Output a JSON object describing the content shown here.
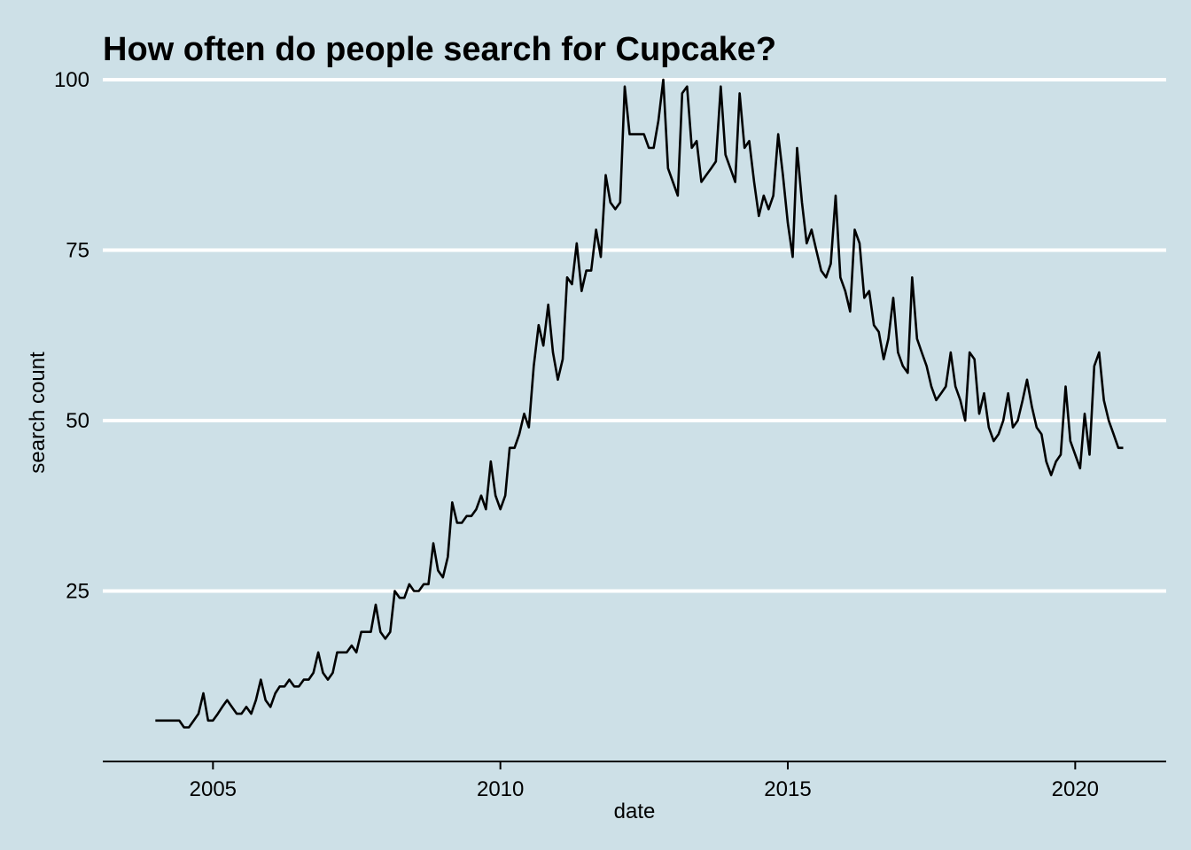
{
  "colors": {
    "background": "#cde0e7",
    "grid": "#ffffff",
    "line": "#000000",
    "axis": "#000000",
    "text": "#000000"
  },
  "chart_data": {
    "type": "line",
    "title": "How often do people search for Cupcake?",
    "xlabel": "date",
    "ylabel": "search count",
    "grid": "horizontal major lines only",
    "xlim": [
      "2003-02-01",
      "2021-08-01"
    ],
    "ylim": [
      0,
      100
    ],
    "x_ticks": [
      "2005-01-01",
      "2010-01-01",
      "2015-01-01",
      "2020-01-01"
    ],
    "x_tick_labels": [
      "2005",
      "2010",
      "2015",
      "2020"
    ],
    "y_ticks": [
      25,
      50,
      75,
      100
    ],
    "y_tick_labels": [
      "25",
      "50",
      "75",
      "100"
    ],
    "series": [
      {
        "start": "2004-01",
        "frequency": "monthly",
        "values": [
          6,
          6,
          6,
          6,
          6,
          6,
          5,
          5,
          6,
          7,
          10,
          6,
          6,
          7,
          8,
          9,
          8,
          7,
          7,
          8,
          7,
          9,
          12,
          9,
          8,
          10,
          11,
          11,
          12,
          11,
          11,
          12,
          12,
          13,
          16,
          13,
          12,
          13,
          16,
          16,
          16,
          17,
          16,
          19,
          19,
          19,
          23,
          19,
          18,
          19,
          25,
          24,
          24,
          26,
          25,
          25,
          26,
          26,
          32,
          28,
          27,
          30,
          38,
          35,
          35,
          36,
          36,
          37,
          39,
          37,
          44,
          39,
          37,
          39,
          46,
          46,
          48,
          51,
          49,
          58,
          64,
          61,
          67,
          60,
          56,
          59,
          71,
          70,
          76,
          69,
          72,
          72,
          78,
          74,
          86,
          82,
          81,
          82,
          99,
          92,
          92,
          92,
          92,
          90,
          90,
          94,
          100,
          87,
          85,
          83,
          98,
          99,
          90,
          91,
          85,
          86,
          87,
          88,
          99,
          89,
          87,
          85,
          98,
          90,
          91,
          85,
          80,
          83,
          81,
          83,
          92,
          86,
          79,
          74,
          90,
          82,
          76,
          78,
          75,
          72,
          71,
          73,
          83,
          71,
          69,
          66,
          78,
          76,
          68,
          69,
          64,
          63,
          59,
          62,
          68,
          60,
          58,
          57,
          71,
          62,
          60,
          58,
          55,
          53,
          54,
          55,
          60,
          55,
          53,
          50,
          60,
          59,
          51,
          54,
          49,
          47,
          48,
          50,
          54,
          49,
          50,
          53,
          56,
          52,
          49,
          48,
          44,
          42,
          44,
          45,
          55,
          47,
          45,
          43,
          51,
          45,
          58,
          60,
          53,
          50,
          48,
          46,
          46
        ]
      }
    ]
  }
}
